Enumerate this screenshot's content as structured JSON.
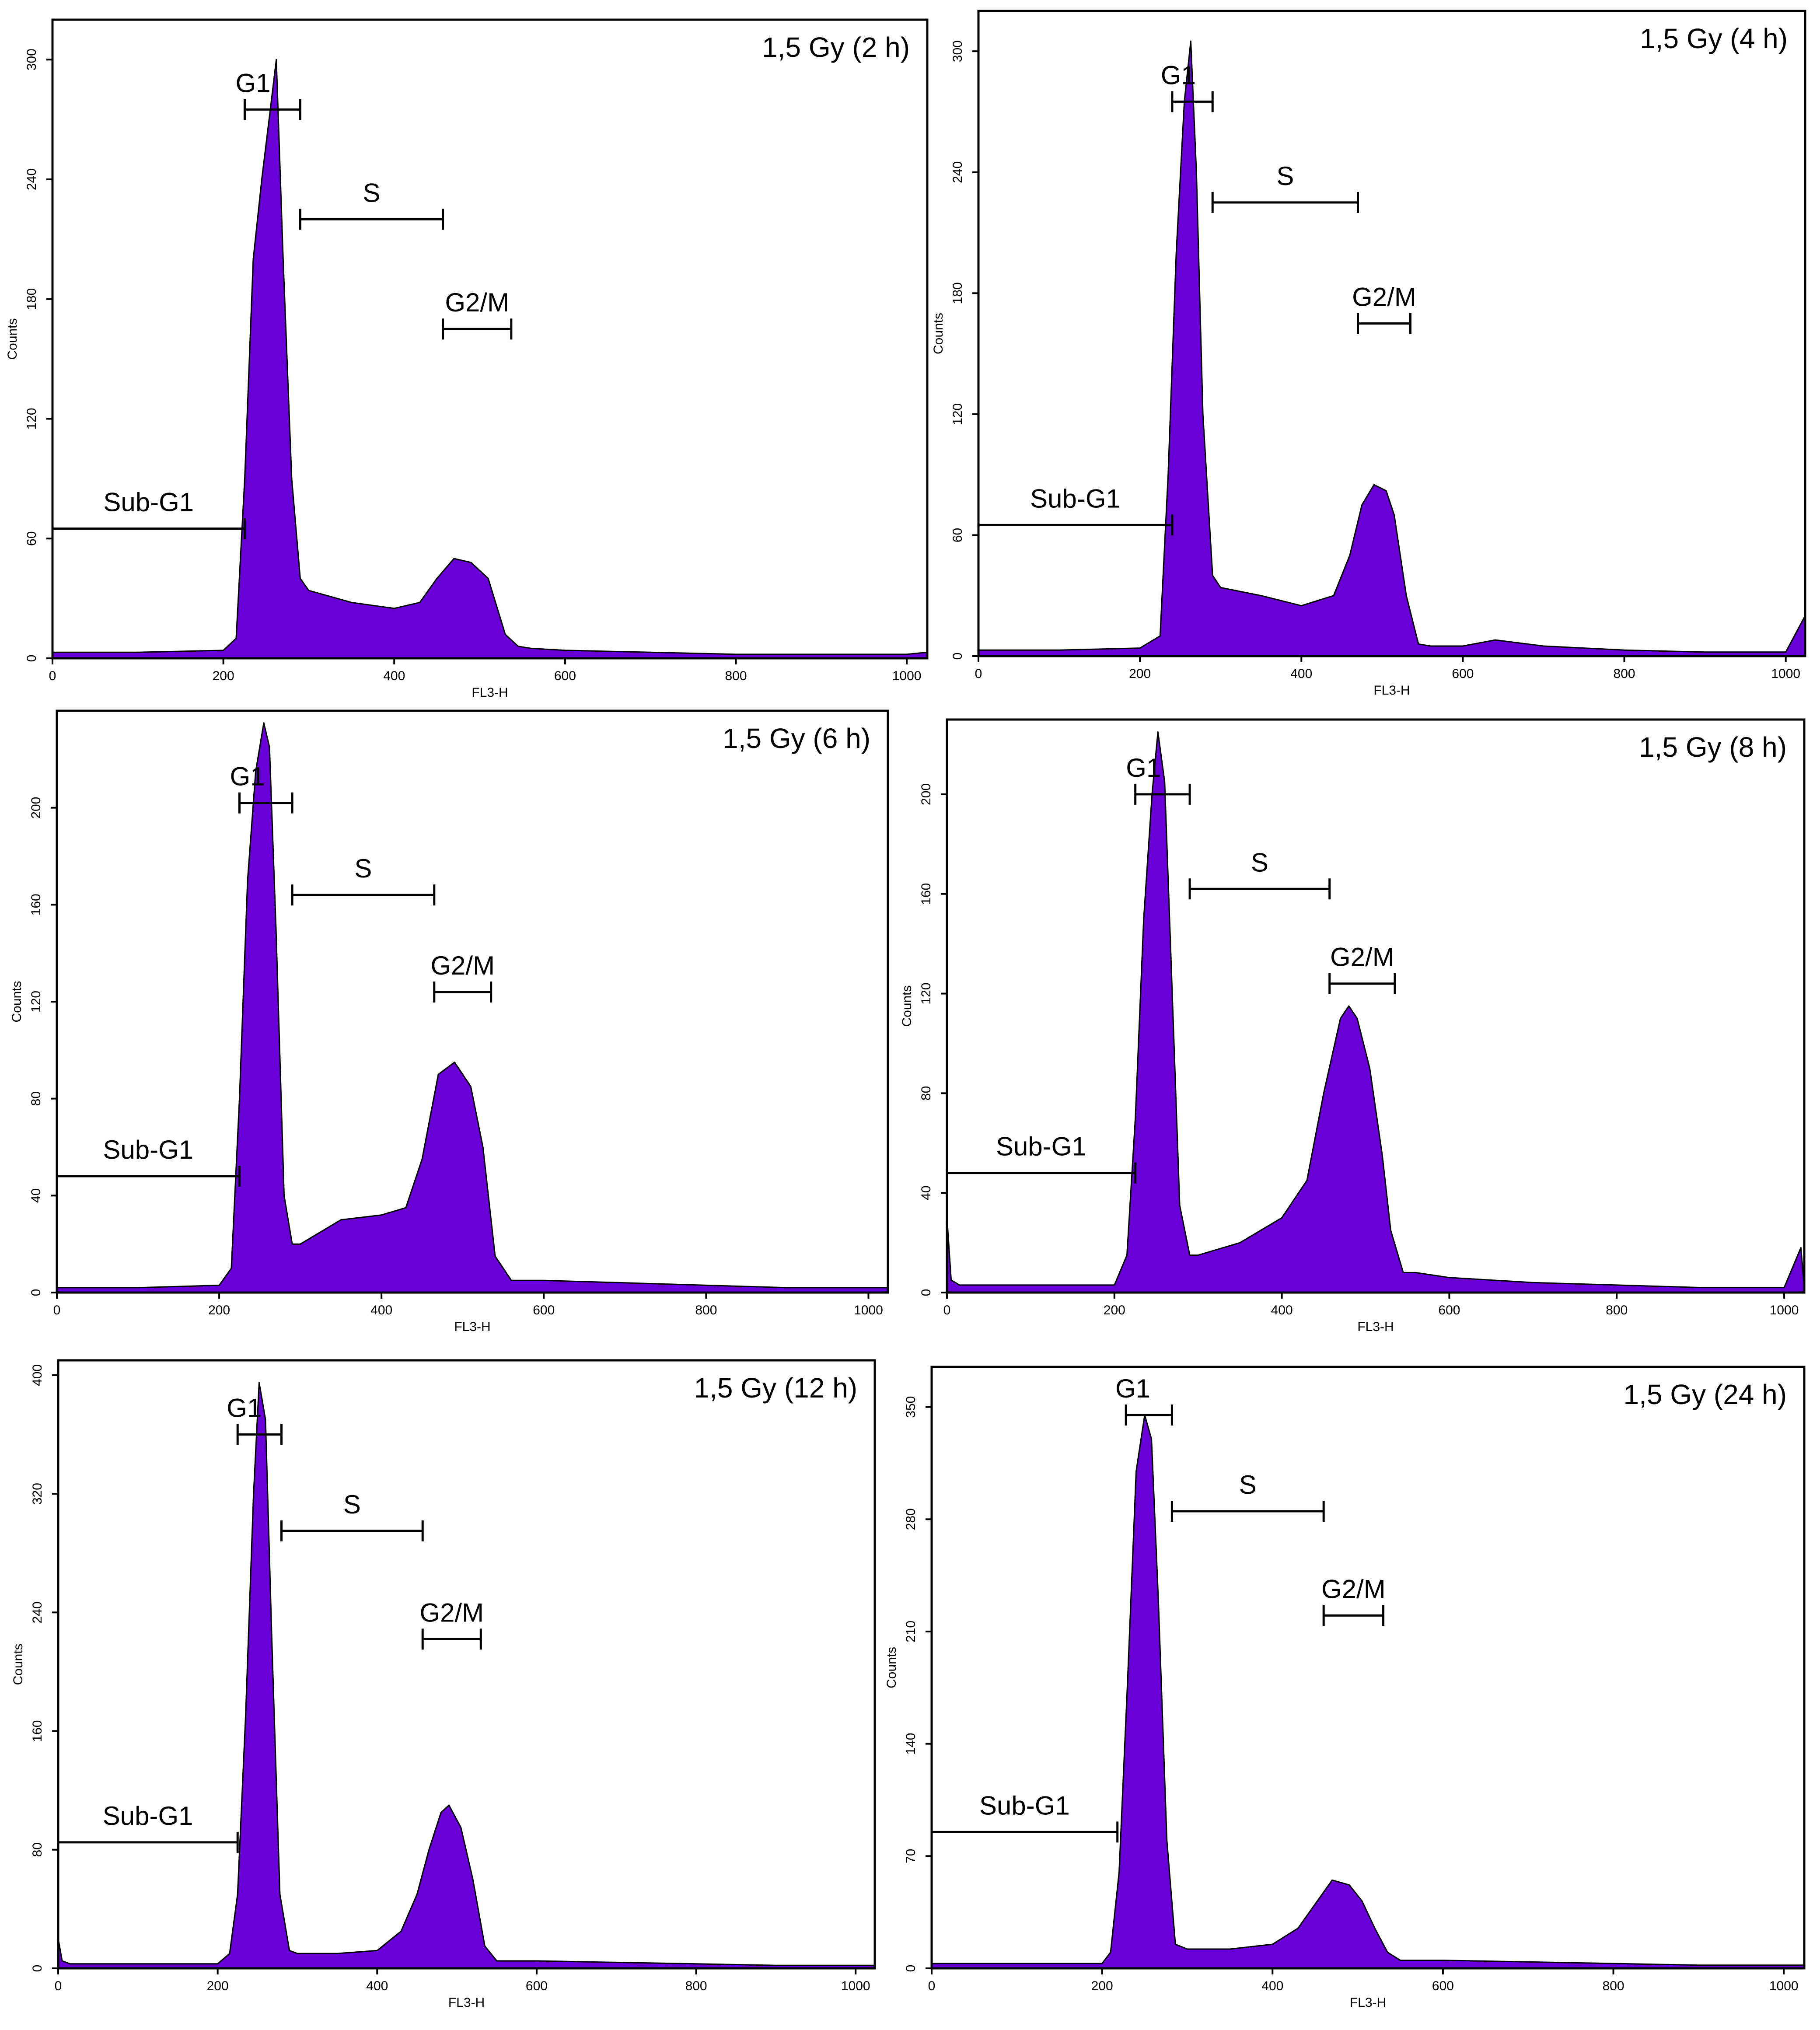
{
  "figure": {
    "x_axis_label": "FL3-H",
    "y_axis_label": "Counts"
  },
  "colors": {
    "fill": "#6a00d8",
    "outline": "#000000",
    "background": "#ffffff"
  },
  "chart_data": [
    {
      "type": "area",
      "title": "1,5 Gy (2 h)",
      "xlabel": "FL3-H",
      "ylabel": "Counts",
      "xlim": [
        0,
        1024
      ],
      "ylim": [
        0,
        320
      ],
      "xticks": [
        0,
        200,
        400,
        600,
        800,
        1000
      ],
      "yticks": [
        0,
        60,
        120,
        180,
        240,
        300
      ],
      "x": [
        0,
        100,
        200,
        215,
        225,
        235,
        245,
        255,
        262,
        270,
        280,
        290,
        300,
        350,
        400,
        430,
        450,
        470,
        490,
        510,
        530,
        545,
        560,
        600,
        700,
        800,
        900,
        1000,
        1024
      ],
      "y": [
        3,
        3,
        4,
        10,
        90,
        200,
        240,
        275,
        300,
        200,
        90,
        40,
        34,
        28,
        25,
        28,
        40,
        50,
        48,
        40,
        12,
        6,
        5,
        4,
        3,
        2,
        2,
        2,
        3
      ],
      "gates": [
        {
          "label": "Sub-G1",
          "start": 0,
          "end": 225,
          "level": 65
        },
        {
          "label": "G1",
          "start": 225,
          "end": 290,
          "level": 275
        },
        {
          "label": "S",
          "start": 290,
          "end": 457,
          "level": 220
        },
        {
          "label": "G2/M",
          "start": 457,
          "end": 537,
          "level": 165
        }
      ]
    },
    {
      "type": "area",
      "title": "1,5 Gy (4 h)",
      "xlabel": "FL3-H",
      "ylabel": "Counts",
      "xlim": [
        0,
        1024
      ],
      "ylim": [
        0,
        320
      ],
      "xticks": [
        0,
        200,
        400,
        600,
        800,
        1000
      ],
      "yticks": [
        0,
        60,
        120,
        180,
        240,
        300
      ],
      "x": [
        0,
        100,
        200,
        225,
        235,
        245,
        255,
        263,
        270,
        278,
        290,
        300,
        350,
        400,
        440,
        460,
        475,
        490,
        505,
        515,
        530,
        545,
        560,
        600,
        640,
        700,
        800,
        900,
        1000,
        1024
      ],
      "y": [
        3,
        3,
        4,
        10,
        90,
        200,
        275,
        305,
        240,
        120,
        40,
        34,
        30,
        25,
        30,
        50,
        75,
        85,
        82,
        70,
        30,
        6,
        5,
        5,
        8,
        5,
        3,
        2,
        2,
        20
      ],
      "gates": [
        {
          "label": "Sub-G1",
          "start": 0,
          "end": 240,
          "level": 65
        },
        {
          "label": "G1",
          "start": 240,
          "end": 290,
          "level": 275
        },
        {
          "label": "S",
          "start": 290,
          "end": 470,
          "level": 225
        },
        {
          "label": "G2/M",
          "start": 470,
          "end": 535,
          "level": 165
        }
      ]
    },
    {
      "type": "area",
      "title": "1,5 Gy (6 h)",
      "xlabel": "FL3-H",
      "ylabel": "Counts",
      "xlim": [
        0,
        1024
      ],
      "ylim": [
        0,
        240
      ],
      "xticks": [
        0,
        200,
        400,
        600,
        800,
        1000
      ],
      "yticks": [
        0,
        40,
        80,
        120,
        160,
        200
      ],
      "x": [
        0,
        100,
        200,
        215,
        225,
        235,
        245,
        255,
        262,
        270,
        280,
        290,
        300,
        350,
        400,
        430,
        450,
        470,
        490,
        510,
        525,
        540,
        560,
        600,
        700,
        800,
        900,
        1000,
        1024
      ],
      "y": [
        2,
        2,
        3,
        10,
        80,
        170,
        215,
        235,
        225,
        150,
        40,
        20,
        20,
        30,
        32,
        35,
        55,
        90,
        95,
        85,
        60,
        15,
        5,
        5,
        4,
        3,
        2,
        2,
        2
      ],
      "gates": [
        {
          "label": "Sub-G1",
          "start": 0,
          "end": 225,
          "level": 48
        },
        {
          "label": "G1",
          "start": 225,
          "end": 290,
          "level": 202
        },
        {
          "label": "S",
          "start": 290,
          "end": 465,
          "level": 164
        },
        {
          "label": "G2/M",
          "start": 465,
          "end": 535,
          "level": 124
        }
      ]
    },
    {
      "type": "area",
      "title": "1,5 Gy (8 h)",
      "xlabel": "FL3-H",
      "ylabel": "Counts",
      "xlim": [
        0,
        1024
      ],
      "ylim": [
        0,
        230
      ],
      "xticks": [
        0,
        200,
        400,
        600,
        800,
        1000
      ],
      "yticks": [
        0,
        40,
        80,
        120,
        160,
        200
      ],
      "x": [
        0,
        5,
        15,
        100,
        200,
        215,
        225,
        235,
        245,
        252,
        260,
        268,
        278,
        290,
        300,
        350,
        400,
        430,
        450,
        470,
        480,
        490,
        505,
        520,
        530,
        545,
        560,
        600,
        700,
        800,
        900,
        1000,
        1020,
        1024
      ],
      "y": [
        30,
        5,
        3,
        3,
        3,
        15,
        70,
        150,
        200,
        225,
        205,
        130,
        35,
        15,
        15,
        20,
        30,
        45,
        80,
        110,
        115,
        110,
        90,
        55,
        25,
        8,
        8,
        6,
        4,
        3,
        2,
        2,
        18,
        2
      ],
      "gates": [
        {
          "label": "Sub-G1",
          "start": 0,
          "end": 225,
          "level": 48
        },
        {
          "label": "G1",
          "start": 225,
          "end": 290,
          "level": 200
        },
        {
          "label": "S",
          "start": 290,
          "end": 457,
          "level": 162
        },
        {
          "label": "G2/M",
          "start": 457,
          "end": 535,
          "level": 124
        }
      ]
    },
    {
      "type": "area",
      "title": "1,5 Gy (12 h)",
      "xlabel": "FL3-H",
      "ylabel": "Counts",
      "xlim": [
        0,
        1024
      ],
      "ylim": [
        0,
        410
      ],
      "xticks": [
        0,
        200,
        400,
        600,
        800,
        1000
      ],
      "yticks": [
        0,
        80,
        160,
        240,
        320,
        400
      ],
      "x": [
        0,
        5,
        15,
        100,
        200,
        215,
        225,
        235,
        245,
        252,
        260,
        268,
        278,
        290,
        300,
        350,
        400,
        430,
        450,
        465,
        480,
        490,
        505,
        520,
        535,
        550,
        600,
        700,
        800,
        900,
        1000,
        1024
      ],
      "y": [
        20,
        5,
        3,
        3,
        3,
        10,
        50,
        170,
        320,
        395,
        370,
        220,
        50,
        12,
        10,
        10,
        12,
        25,
        50,
        80,
        105,
        110,
        95,
        60,
        15,
        5,
        5,
        4,
        3,
        2,
        2,
        2
      ],
      "gates": [
        {
          "label": "Sub-G1",
          "start": 0,
          "end": 225,
          "level": 85
        },
        {
          "label": "G1",
          "start": 225,
          "end": 280,
          "level": 360
        },
        {
          "label": "S",
          "start": 280,
          "end": 457,
          "level": 295
        },
        {
          "label": "G2/M",
          "start": 457,
          "end": 530,
          "level": 222
        }
      ]
    },
    {
      "type": "area",
      "title": "1,5 Gy (24 h)",
      "xlabel": "FL3-H",
      "ylabel": "Counts",
      "xlim": [
        0,
        1024
      ],
      "ylim": [
        0,
        375
      ],
      "xticks": [
        0,
        200,
        400,
        600,
        800,
        1000
      ],
      "yticks": [
        0,
        70,
        140,
        210,
        280,
        350
      ],
      "x": [
        0,
        100,
        200,
        210,
        220,
        230,
        240,
        250,
        258,
        266,
        276,
        286,
        300,
        350,
        400,
        430,
        450,
        470,
        490,
        505,
        520,
        535,
        550,
        600,
        700,
        800,
        900,
        1000,
        1024
      ],
      "y": [
        3,
        3,
        3,
        10,
        60,
        180,
        310,
        345,
        330,
        230,
        80,
        15,
        12,
        12,
        15,
        25,
        40,
        55,
        52,
        42,
        25,
        10,
        5,
        5,
        4,
        3,
        2,
        2,
        2
      ],
      "gates": [
        {
          "label": "Sub-G1",
          "start": 0,
          "end": 218,
          "level": 85
        },
        {
          "label": "G1",
          "start": 228,
          "end": 282,
          "level": 345
        },
        {
          "label": "S",
          "start": 282,
          "end": 460,
          "level": 285
        },
        {
          "label": "G2/M",
          "start": 460,
          "end": 530,
          "level": 220
        }
      ]
    }
  ]
}
